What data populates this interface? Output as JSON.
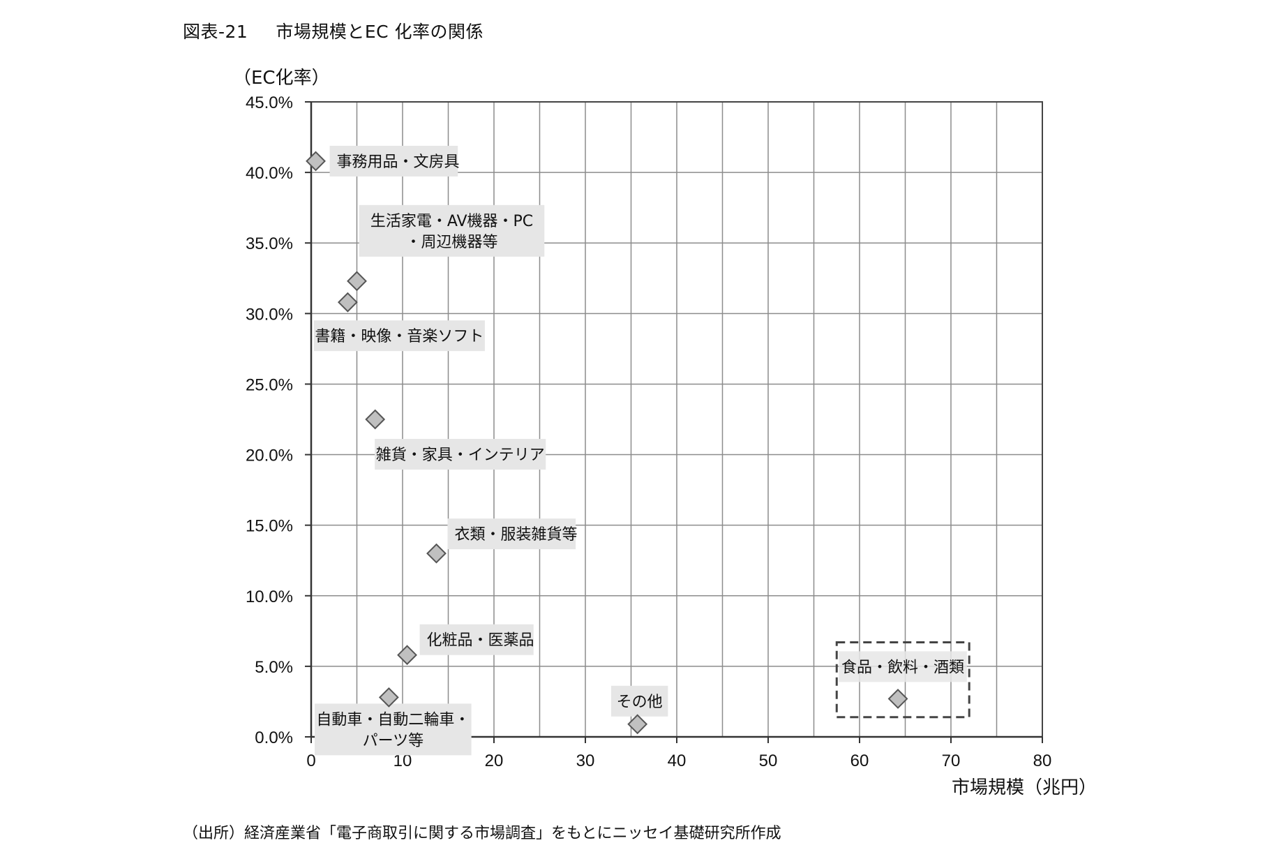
{
  "figure": {
    "number": "図表-21",
    "title": "市場規模とEC 化率の関係",
    "source": "（出所）経済産業省「電子商取引に関する市場調査」をもとにニッセイ基礎研究所作成"
  },
  "colors": {
    "marker_fill": "#c0c0c0",
    "marker_stroke": "#555555",
    "grid": "#8c8c8c",
    "label_bg": "#e6e6e6",
    "highlight_box": "#444444"
  },
  "chart_data": {
    "type": "scatter",
    "xlabel": "市場規模（兆円）",
    "ylabel": "（EC化率）",
    "xlim": [
      0,
      80
    ],
    "ylim": [
      0,
      0.45
    ],
    "x_ticks": [
      0,
      10,
      20,
      30,
      40,
      50,
      60,
      70,
      80
    ],
    "y_ticks": [
      0,
      0.05,
      0.1,
      0.15,
      0.2,
      0.25,
      0.3,
      0.35,
      0.4,
      0.45
    ],
    "y_tick_labels": [
      "0.0%",
      "5.0%",
      "10.0%",
      "15.0%",
      "20.0%",
      "25.0%",
      "30.0%",
      "35.0%",
      "40.0%",
      "45.0%"
    ],
    "x_tick_labels": [
      "0",
      "10",
      "20",
      "30",
      "40",
      "50",
      "60",
      "70",
      "80"
    ],
    "grid": true,
    "marker": "diamond",
    "points": [
      {
        "label_lines": [
          "事務用品・文房具"
        ],
        "x": 0.5,
        "y": 0.408
      },
      {
        "label_lines": [
          "生活家電・AV機器・PC",
          "・周辺機器等"
        ],
        "x": 5.0,
        "y": 0.323
      },
      {
        "label_lines": [
          "書籍・映像・音楽ソフト"
        ],
        "x": 4.0,
        "y": 0.308
      },
      {
        "label_lines": [
          "雑貨・家具・インテリア"
        ],
        "x": 7.0,
        "y": 0.225
      },
      {
        "label_lines": [
          "衣類・服装雑貨等"
        ],
        "x": 13.7,
        "y": 0.13
      },
      {
        "label_lines": [
          "化粧品・医薬品"
        ],
        "x": 10.5,
        "y": 0.058
      },
      {
        "label_lines": [
          "自動車・自動二輪車・",
          "パーツ等"
        ],
        "x": 8.5,
        "y": 0.028
      },
      {
        "label_lines": [
          "その他"
        ],
        "x": 35.7,
        "y": 0.009
      },
      {
        "label_lines": [
          "食品・飲料・酒類"
        ],
        "x": 64.2,
        "y": 0.027
      }
    ],
    "highlight": {
      "label": "食品・飲料・酒類",
      "x_range": [
        57.5,
        72.0
      ],
      "y_range": [
        0.014,
        0.067
      ]
    }
  }
}
